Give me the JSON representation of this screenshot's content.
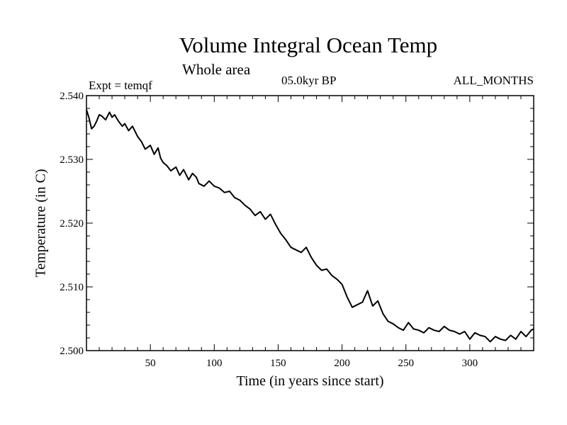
{
  "chart_data": {
    "type": "line",
    "title": "Volume Integral Ocean Temp",
    "subtitle": "Whole area",
    "experiment": "Expt = temqf",
    "period": "05.0kyr BP",
    "months": "ALL_MONTHS",
    "xlabel": "Time (in years since start)",
    "ylabel": "Temperature (in C)",
    "xlim": [
      0,
      350
    ],
    "ylim": [
      2.5,
      2.54
    ],
    "xticks": [
      50,
      100,
      150,
      200,
      250,
      300
    ],
    "xtick_labels": [
      "50",
      "100",
      "150",
      "200",
      "250",
      "300"
    ],
    "yticks": [
      2.5,
      2.51,
      2.52,
      2.53,
      2.54
    ],
    "ytick_labels": [
      "2.500",
      "2.510",
      "2.520",
      "2.530",
      "2.540"
    ],
    "grid": false,
    "series": [
      {
        "name": "temqf",
        "color": "#000000",
        "x": [
          0,
          2,
          4,
          6,
          8,
          10,
          12,
          15,
          18,
          20,
          22,
          25,
          28,
          30,
          33,
          36,
          40,
          43,
          46,
          50,
          53,
          56,
          58,
          60,
          63,
          66,
          70,
          73,
          76,
          80,
          83,
          86,
          88,
          92,
          96,
          100,
          104,
          108,
          112,
          116,
          120,
          124,
          128,
          132,
          136,
          140,
          144,
          148,
          152,
          156,
          160,
          164,
          168,
          172,
          176,
          180,
          184,
          188,
          192,
          196,
          200,
          204,
          208,
          212,
          216,
          220,
          224,
          228,
          232,
          236,
          240,
          244,
          248,
          252,
          256,
          260,
          264,
          268,
          272,
          276,
          280,
          284,
          288,
          292,
          296,
          300,
          304,
          308,
          312,
          316,
          320,
          324,
          328,
          332,
          336,
          340,
          344,
          348,
          350
        ],
        "values": [
          2.5378,
          2.5365,
          2.5348,
          2.5352,
          2.536,
          2.537,
          2.5368,
          2.5362,
          2.5374,
          2.5366,
          2.537,
          2.536,
          2.5352,
          2.5356,
          2.5345,
          2.5352,
          2.5336,
          2.5328,
          2.5316,
          2.5322,
          2.5308,
          2.5318,
          2.5302,
          2.5295,
          2.529,
          2.5282,
          2.5288,
          2.5275,
          2.5284,
          2.5268,
          2.5278,
          2.5272,
          2.5262,
          2.5258,
          2.5266,
          2.5258,
          2.5255,
          2.5248,
          2.525,
          2.524,
          2.5236,
          2.5228,
          2.5222,
          2.5212,
          2.5218,
          2.5206,
          2.5214,
          2.5198,
          2.5184,
          2.5174,
          2.5162,
          2.5158,
          2.5154,
          2.5162,
          2.5146,
          2.5134,
          2.5126,
          2.5128,
          2.5118,
          2.5112,
          2.5104,
          2.5084,
          2.5068,
          2.5072,
          2.5076,
          2.5094,
          2.507,
          2.5078,
          2.5058,
          2.5046,
          2.5042,
          2.5036,
          2.5032,
          2.5044,
          2.5034,
          2.5032,
          2.5028,
          2.5036,
          2.5032,
          2.503,
          2.5038,
          2.5032,
          2.503,
          2.5026,
          2.503,
          2.5018,
          2.5028,
          2.5024,
          2.5022,
          2.5014,
          2.5022,
          2.5018,
          2.5016,
          2.5024,
          2.5018,
          2.503,
          2.5022,
          2.5032,
          2.5034
        ]
      }
    ]
  }
}
